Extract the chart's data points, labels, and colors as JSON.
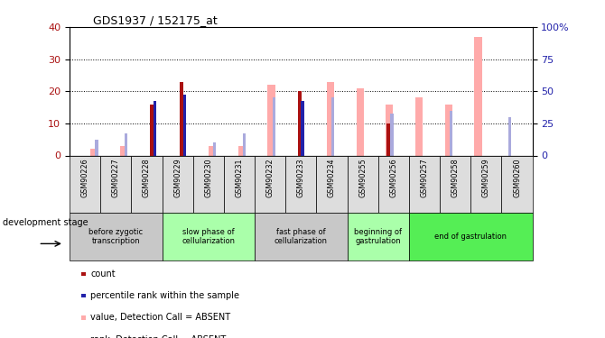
{
  "title": "GDS1937 / 152175_at",
  "samples": [
    "GSM90226",
    "GSM90227",
    "GSM90228",
    "GSM90229",
    "GSM90230",
    "GSM90231",
    "GSM90232",
    "GSM90233",
    "GSM90234",
    "GSM90255",
    "GSM90256",
    "GSM90257",
    "GSM90258",
    "GSM90259",
    "GSM90260"
  ],
  "count_values": [
    0,
    0,
    16,
    23,
    0,
    0,
    0,
    20,
    0,
    0,
    10,
    0,
    0,
    0,
    0
  ],
  "rank_values": [
    0,
    0,
    17,
    19,
    0,
    0,
    0,
    17,
    0,
    0,
    0,
    0,
    0,
    0,
    0
  ],
  "absent_value": [
    2,
    3,
    0,
    0,
    3,
    3,
    22,
    0,
    23,
    21,
    16,
    18,
    16,
    37,
    0
  ],
  "absent_rank": [
    5,
    7,
    0,
    0,
    4,
    7,
    18,
    0,
    18,
    0,
    13,
    0,
    14,
    0,
    12
  ],
  "ylim_left": [
    0,
    40
  ],
  "ylim_right": [
    0,
    100
  ],
  "yticks_left": [
    0,
    10,
    20,
    30,
    40
  ],
  "yticks_right": [
    0,
    25,
    50,
    75,
    100
  ],
  "ytick_labels_right": [
    "0",
    "25",
    "50",
    "75",
    "100%"
  ],
  "count_color": "#AA1111",
  "rank_color": "#2222AA",
  "absent_value_color": "#FFAAAA",
  "absent_rank_color": "#AAAADD",
  "stages": [
    {
      "label": "before zygotic\ntranscription",
      "start": 0,
      "end": 3,
      "color": "#C8C8C8"
    },
    {
      "label": "slow phase of\ncellularization",
      "start": 3,
      "end": 6,
      "color": "#AAFFAA"
    },
    {
      "label": "fast phase of\ncellularization",
      "start": 6,
      "end": 9,
      "color": "#C8C8C8"
    },
    {
      "label": "beginning of\ngastrulation",
      "start": 9,
      "end": 11,
      "color": "#AAFFAA"
    },
    {
      "label": "end of gastrulation",
      "start": 11,
      "end": 15,
      "color": "#55EE55"
    }
  ],
  "bar_width": 0.18,
  "tick_box_color": "#DDDDDD",
  "dev_stage_label": "development stage",
  "legend_items": [
    {
      "color": "#AA1111",
      "label": "count"
    },
    {
      "color": "#2222AA",
      "label": "percentile rank within the sample"
    },
    {
      "color": "#FFAAAA",
      "label": "value, Detection Call = ABSENT"
    },
    {
      "color": "#AAAADD",
      "label": "rank, Detection Call = ABSENT"
    }
  ]
}
